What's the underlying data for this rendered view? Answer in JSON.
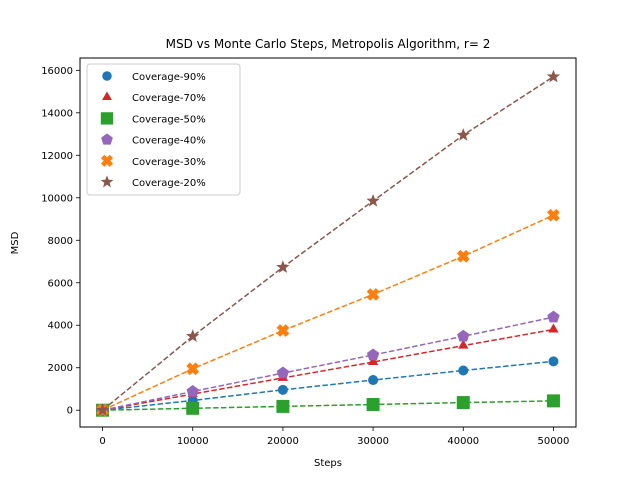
{
  "chart_data": {
    "type": "line",
    "title": "MSD vs Monte Carlo Steps, Metropolis Algorithm, r= 2",
    "xlabel": "Steps",
    "ylabel": "MSD",
    "x": [
      0,
      10000,
      20000,
      30000,
      40000,
      50000
    ],
    "xlim": [
      -2500,
      52500
    ],
    "ylim": [
      -790,
      16580
    ],
    "xticks": [
      0,
      10000,
      20000,
      30000,
      40000,
      50000
    ],
    "yticks": [
      0,
      2000,
      4000,
      6000,
      8000,
      10000,
      12000,
      14000,
      16000
    ],
    "grid": false,
    "legend_position": "top-left",
    "line_style": "dashed",
    "series": [
      {
        "name": "Coverage-90%",
        "values": [
          0,
          460,
          960,
          1420,
          1870,
          2300
        ],
        "color": "#1f77b4",
        "marker": "circle"
      },
      {
        "name": "Coverage-70%",
        "values": [
          0,
          760,
          1520,
          2270,
          3040,
          3800
        ],
        "color": "#d62728",
        "marker": "triangle"
      },
      {
        "name": "Coverage-50%",
        "values": [
          0,
          90,
          180,
          270,
          360,
          440
        ],
        "color": "#2ca02c",
        "marker": "square"
      },
      {
        "name": "Coverage-40%",
        "values": [
          0,
          880,
          1750,
          2600,
          3480,
          4380
        ],
        "color": "#9467bd",
        "marker": "pentagon"
      },
      {
        "name": "Coverage-30%",
        "values": [
          0,
          1950,
          3750,
          5450,
          7250,
          9180
        ],
        "color": "#ff7f0e",
        "marker": "x"
      },
      {
        "name": "Coverage-20%",
        "values": [
          0,
          3480,
          6730,
          9850,
          12950,
          15700
        ],
        "color": "#8c564b",
        "marker": "star"
      }
    ]
  }
}
